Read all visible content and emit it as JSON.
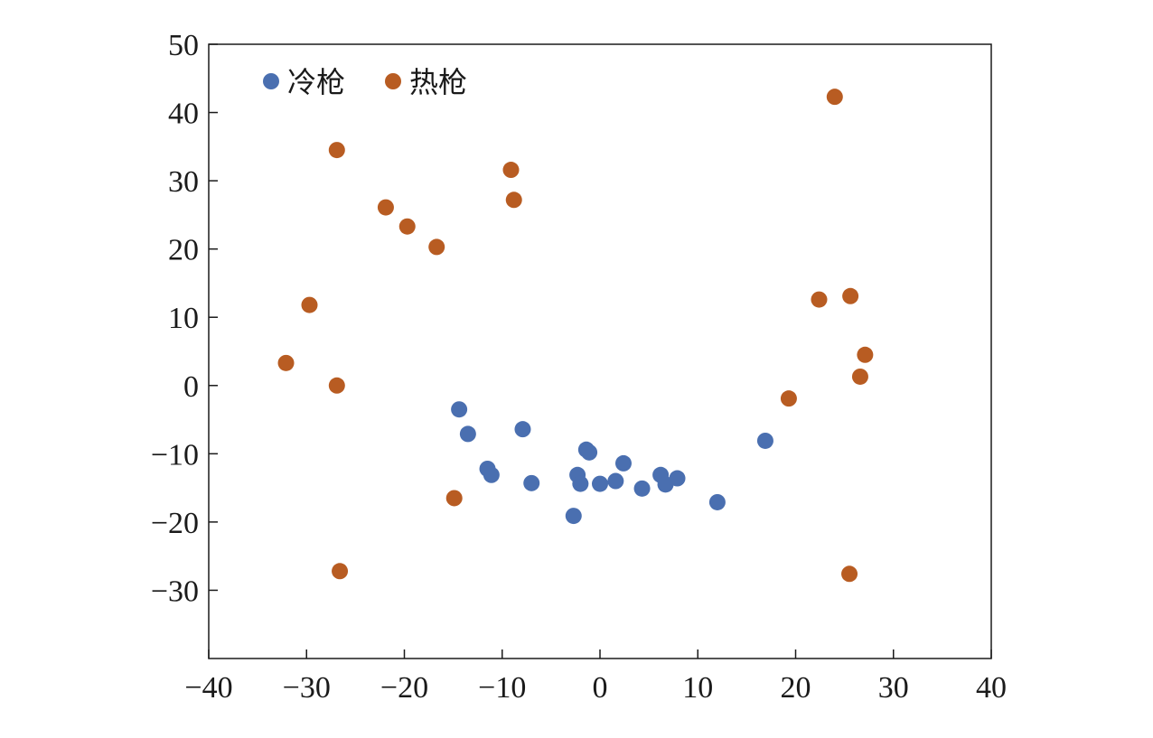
{
  "chart_data": {
    "type": "scatter",
    "title": "",
    "xlabel": "",
    "ylabel": "",
    "xlim": [
      -40,
      40
    ],
    "ylim": [
      -40,
      50
    ],
    "x_ticks": [
      -40,
      -30,
      -20,
      -10,
      0,
      10,
      20,
      30,
      40
    ],
    "y_ticks": [
      -30,
      -20,
      -10,
      0,
      10,
      20,
      30,
      40,
      50
    ],
    "x_tick_labels": [
      "−40",
      "−30",
      "−20",
      "−10",
      "0",
      "10",
      "20",
      "30",
      "40"
    ],
    "y_tick_labels": [
      "−30",
      "−20",
      "−10",
      "0",
      "10",
      "20",
      "30",
      "40",
      "50"
    ],
    "grid": false,
    "legend_position": "top-left",
    "series": [
      {
        "name": "冷枪",
        "color": "#4a6fb0",
        "points": [
          [
            -14.4,
            -3.5
          ],
          [
            -13.5,
            -7.1
          ],
          [
            -11.5,
            -12.2
          ],
          [
            -11.1,
            -13.1
          ],
          [
            -7.9,
            -6.4
          ],
          [
            -7.0,
            -14.3
          ],
          [
            -2.7,
            -19.1
          ],
          [
            -2.3,
            -13.1
          ],
          [
            -2.0,
            -14.4
          ],
          [
            -1.4,
            -9.4
          ],
          [
            -1.1,
            -9.8
          ],
          [
            0.0,
            -14.4
          ],
          [
            1.6,
            -14.0
          ],
          [
            2.4,
            -11.4
          ],
          [
            4.3,
            -15.1
          ],
          [
            6.2,
            -13.1
          ],
          [
            6.7,
            -14.5
          ],
          [
            7.9,
            -13.6
          ],
          [
            12.0,
            -17.1
          ],
          [
            16.9,
            -8.1
          ]
        ]
      },
      {
        "name": "热枪",
        "color": "#b85c22",
        "points": [
          [
            -32.1,
            3.3
          ],
          [
            -29.7,
            11.8
          ],
          [
            -26.9,
            34.5
          ],
          [
            -26.9,
            0.0
          ],
          [
            -26.6,
            -27.2
          ],
          [
            -21.9,
            26.1
          ],
          [
            -19.7,
            23.3
          ],
          [
            -16.7,
            20.3
          ],
          [
            -14.9,
            -16.5
          ],
          [
            -9.1,
            31.6
          ],
          [
            -8.8,
            27.2
          ],
          [
            19.3,
            -1.9
          ],
          [
            22.4,
            12.6
          ],
          [
            24.0,
            42.3
          ],
          [
            25.5,
            -27.6
          ],
          [
            25.6,
            13.1
          ],
          [
            26.6,
            1.3
          ],
          [
            27.1,
            4.5
          ]
        ]
      }
    ]
  }
}
